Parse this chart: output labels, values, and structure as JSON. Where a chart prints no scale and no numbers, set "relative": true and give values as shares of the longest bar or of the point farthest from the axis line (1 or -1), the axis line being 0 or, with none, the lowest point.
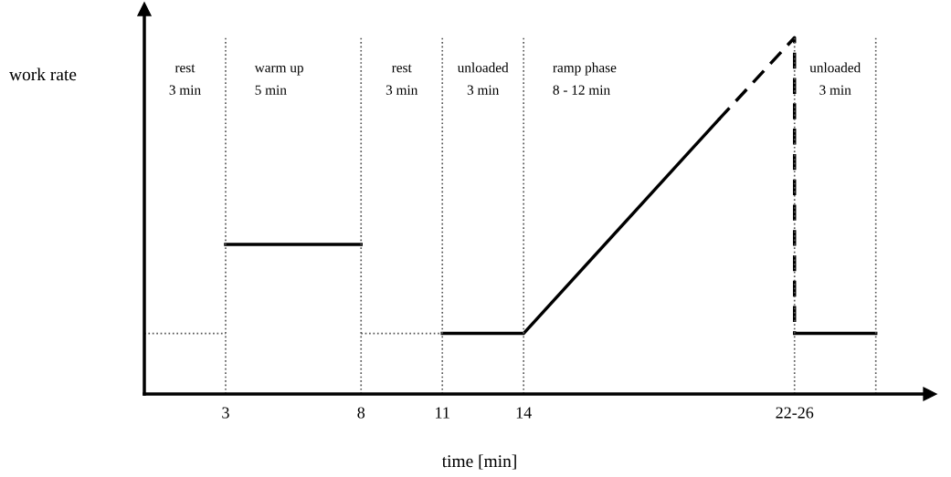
{
  "chart_data": {
    "type": "line",
    "relative": true,
    "xlabel": "time [min]",
    "ylabel": "work rate",
    "xlim": [
      0,
      29
    ],
    "xticks": [
      3,
      8,
      11,
      14,
      {
        "value": 24,
        "label": "22-26"
      }
    ],
    "grid": false,
    "legend": false,
    "series": [
      {
        "color": "#000000",
        "x": [
          3,
          8
        ],
        "values": [
          0.42,
          0.42
        ],
        "line_style": "solid"
      },
      {
        "color": "#000000",
        "x": [
          11,
          14,
          21.2
        ],
        "values": [
          0.17,
          0.17,
          0.77
        ],
        "line_style": "solid"
      },
      {
        "color": "#000000",
        "x": [
          21.2,
          24,
          24
        ],
        "values": [
          0.77,
          1,
          0.17
        ],
        "line_style": "dashed"
      },
      {
        "color": "#000000",
        "x": [
          24,
          27
        ],
        "values": [
          0.17,
          0.17
        ],
        "line_style": "solid"
      },
      {
        "color": "#555555",
        "x": [
          0,
          3,
          5.5,
          8,
          11
        ],
        "values": [
          0.17,
          0.17,
          null,
          0.17,
          0.17
        ],
        "line_style": "dotted"
      }
    ],
    "ref_lines": [
      {
        "axis": "x",
        "value": 3,
        "color": "#555555",
        "line_style": "dotted"
      },
      {
        "axis": "x",
        "value": 8,
        "color": "#555555",
        "line_style": "dotted"
      },
      {
        "axis": "x",
        "value": 11,
        "color": "#555555",
        "line_style": "dotted"
      },
      {
        "axis": "x",
        "value": 14,
        "color": "#555555",
        "line_style": "dotted"
      },
      {
        "axis": "x",
        "value": 24,
        "color": "#555555",
        "line_style": "dotted"
      },
      {
        "axis": "x",
        "value": 27,
        "color": "#555555",
        "line_style": "dotted"
      }
    ],
    "annotations": [
      "rest\n3 min",
      "warm up\n5 min",
      "rest\n3 min",
      "unloaded\n3 min",
      "ramp phase\n8 - 12 min",
      "unloaded\n3 min"
    ]
  }
}
